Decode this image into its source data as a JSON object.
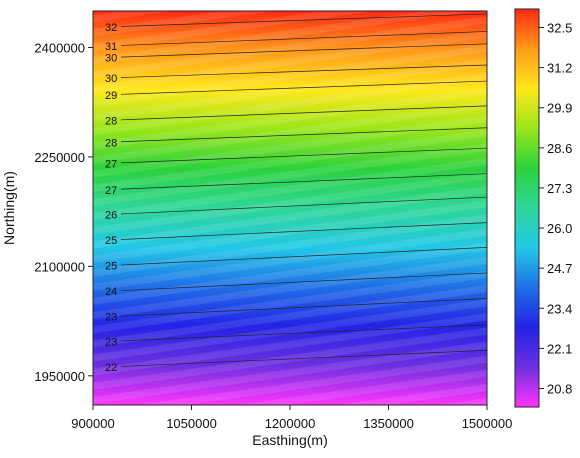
{
  "chart_data": {
    "type": "heatmap",
    "title": "",
    "xlabel": "Easthing(m)",
    "ylabel": "Northing(m)",
    "xlim": [
      900000,
      1500000
    ],
    "ylim": [
      1910000,
      2450000
    ],
    "xticks": [
      900000,
      1050000,
      1200000,
      1350000,
      1500000
    ],
    "yticks": [
      1950000,
      2100000,
      2250000,
      2400000
    ],
    "xtick_labels": [
      "900000",
      "1050000",
      "1200000",
      "1350000",
      "1500000"
    ],
    "ytick_labels": [
      "1950000",
      "2100000",
      "2250000",
      "2400000"
    ],
    "colorbar": {
      "min": 20.2,
      "max": 33.1,
      "ticks": [
        32.5,
        31.2,
        29.9,
        28.6,
        27.3,
        26.0,
        24.7,
        23.4,
        22.1,
        20.8
      ],
      "tick_labels": [
        "32.5",
        "31.2",
        "29.9",
        "28.6",
        "27.3",
        "26.0",
        "24.7",
        "23.4",
        "22.1",
        "20.8"
      ],
      "colors": [
        "#ff33ff",
        "#6e2fe0",
        "#2323e6",
        "#1f6fe6",
        "#22c8e6",
        "#2ed69a",
        "#2bd23c",
        "#9ae61a",
        "#ffe81a",
        "#ff9a1a",
        "#ff2a12"
      ]
    },
    "contours": [
      {
        "value": 32,
        "label": "32",
        "y_west": 2428000,
        "y_east": 2446000
      },
      {
        "value": 31,
        "label": "31",
        "y_west": 2402000,
        "y_east": 2422000
      },
      {
        "value": 30,
        "label": "30",
        "y_west": 2386000,
        "y_east": 2405000
      },
      {
        "value": 30,
        "label": "30",
        "y_west": 2358000,
        "y_east": 2376000
      },
      {
        "value": 29,
        "label": "29",
        "y_west": 2335000,
        "y_east": 2354000
      },
      {
        "value": 28,
        "label": "28",
        "y_west": 2300000,
        "y_east": 2320000
      },
      {
        "value": 28,
        "label": "28",
        "y_west": 2270000,
        "y_east": 2290000
      },
      {
        "value": 27,
        "label": "27",
        "y_west": 2241000,
        "y_east": 2262000
      },
      {
        "value": 27,
        "label": "27",
        "y_west": 2205000,
        "y_east": 2227000
      },
      {
        "value": 26,
        "label": "26",
        "y_west": 2171000,
        "y_east": 2195000
      },
      {
        "value": 25,
        "label": "25",
        "y_west": 2136000,
        "y_east": 2160000
      },
      {
        "value": 25,
        "label": "25",
        "y_west": 2101000,
        "y_east": 2126000
      },
      {
        "value": 24,
        "label": "24",
        "y_west": 2066000,
        "y_east": 2091000
      },
      {
        "value": 23,
        "label": "23",
        "y_west": 2031000,
        "y_east": 2056000
      },
      {
        "value": 23,
        "label": "23",
        "y_west": 1997000,
        "y_east": 2020000
      },
      {
        "value": 22,
        "label": "22",
        "y_west": 1962000,
        "y_east": 1985000
      }
    ]
  }
}
